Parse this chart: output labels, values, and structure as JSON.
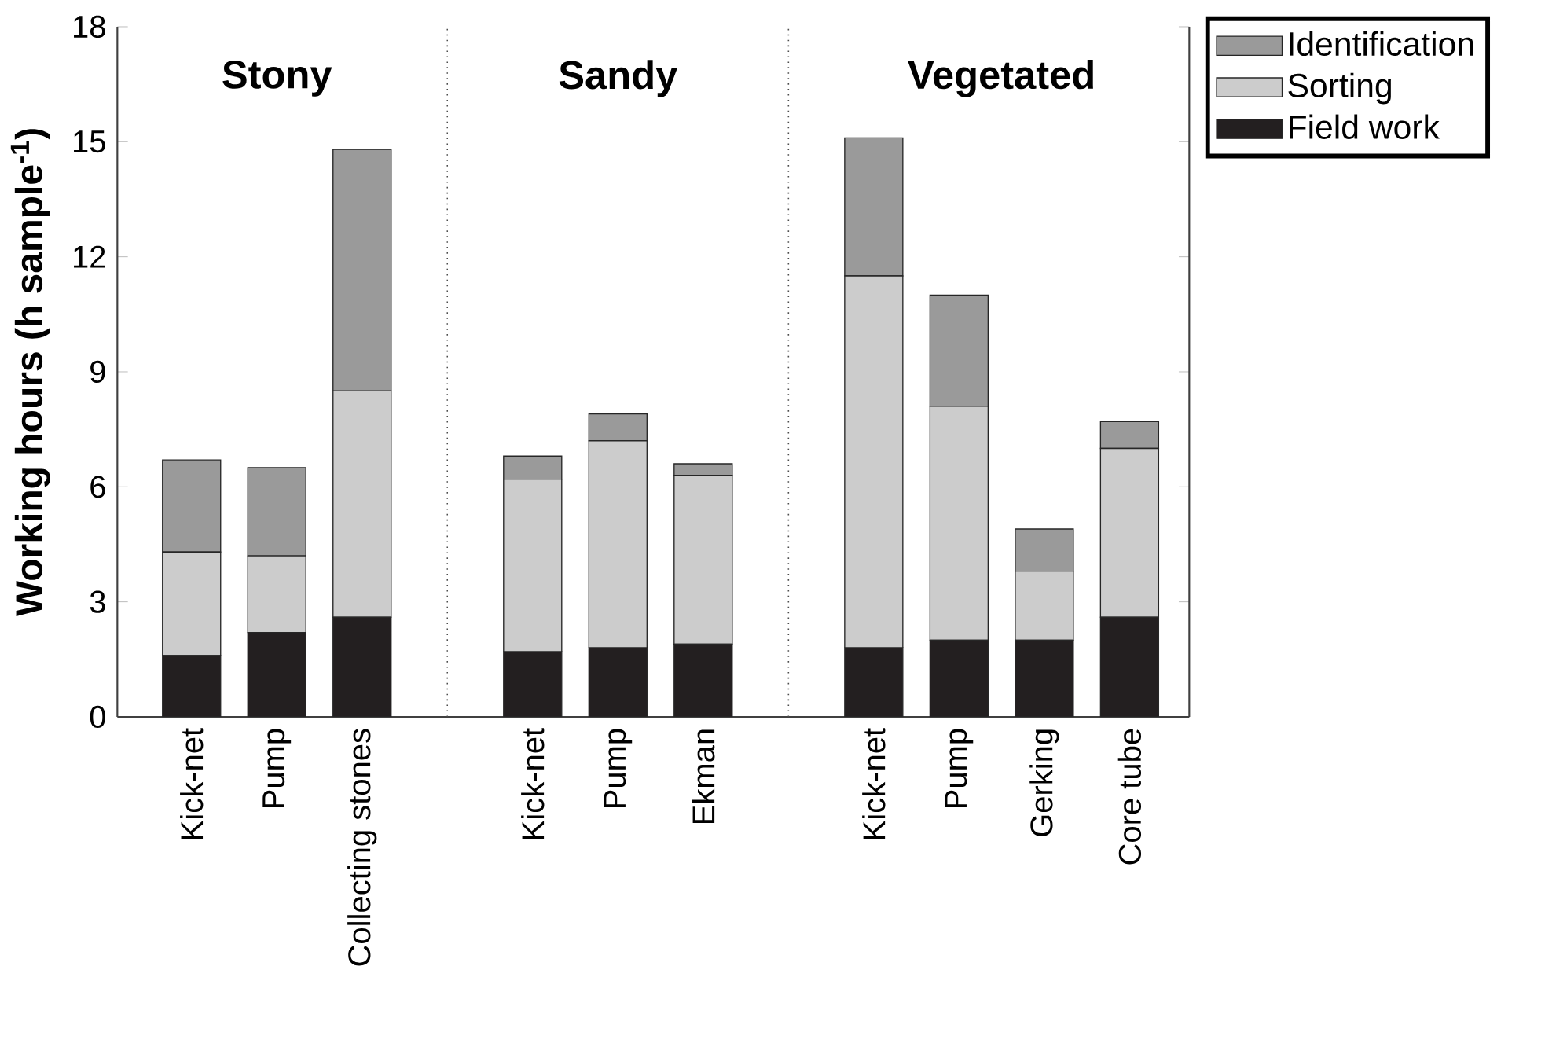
{
  "chart_data": {
    "type": "bar",
    "stacked": true,
    "ylabel": "Working hours (h sample$^{-1}$)",
    "categories": [
      "Kick-net",
      "Pump",
      "Collecting stones",
      null,
      "Kick-net",
      "Pump",
      "Ekman",
      null,
      "Kick-net",
      "Pump",
      "Gerking",
      "Core tube"
    ],
    "series": [
      {
        "name": "Field work",
        "color": "#231f20",
        "values": [
          1.6,
          2.2,
          2.6,
          null,
          1.7,
          1.8,
          1.9,
          null,
          1.8,
          2.0,
          2.0,
          2.6
        ]
      },
      {
        "name": "Sorting",
        "color": "#cccccc",
        "values": [
          2.7,
          2.0,
          5.9,
          null,
          4.5,
          5.4,
          4.4,
          null,
          9.7,
          6.1,
          1.8,
          4.4
        ]
      },
      {
        "name": "Identification",
        "color": "#9a9a9a",
        "values": [
          2.4,
          2.3,
          6.3,
          null,
          0.6,
          0.7,
          0.3,
          null,
          3.6,
          2.9,
          1.1,
          0.7
        ]
      }
    ],
    "ylim": [
      0,
      18
    ],
    "yticks": [
      0,
      3,
      6,
      9,
      12,
      15,
      18
    ],
    "annotations": [
      "Stony",
      "Sandy",
      "Vegetated"
    ],
    "legend": "top right"
  }
}
